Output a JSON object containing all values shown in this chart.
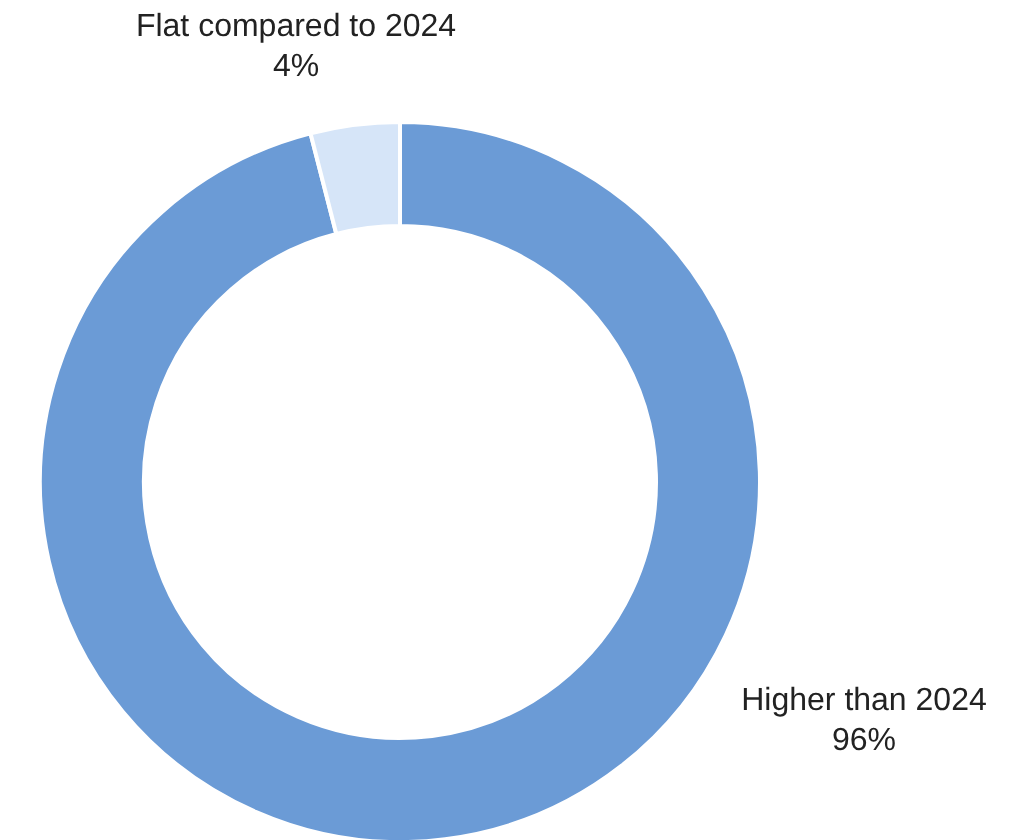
{
  "chart_data": {
    "type": "donut",
    "categories": [
      "Higher than 2024",
      "Flat compared to 2024"
    ],
    "values": [
      96,
      4
    ],
    "colors": [
      "#6b9bd6",
      "#d6e5f8"
    ],
    "value_labels": [
      "96%",
      "4%"
    ],
    "legend": false
  }
}
